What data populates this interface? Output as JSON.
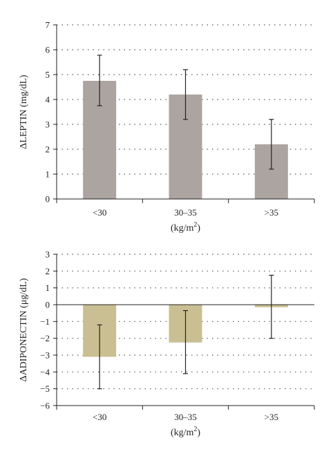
{
  "chart_data": [
    {
      "type": "bar",
      "categories": [
        "<30",
        "30–35",
        ">35"
      ],
      "values": [
        4.75,
        4.2,
        2.2
      ],
      "error_low": [
        3.75,
        3.2,
        1.2
      ],
      "error_high": [
        5.78,
        5.2,
        3.2
      ],
      "ylabel": "ΔLEPTIN (mg/dL)",
      "xlabel_main": "(kg/m",
      "xlabel_sup": "2",
      "xlabel_end": ")",
      "ylim": [
        0,
        7
      ],
      "yticks": [
        "0",
        "1",
        "2",
        "3",
        "4",
        "5",
        "6",
        "7"
      ],
      "grid": true,
      "bar_color": "#aca4a0"
    },
    {
      "type": "bar",
      "categories": [
        "<30",
        "30–35",
        ">35"
      ],
      "values": [
        -3.1,
        -2.25,
        -0.15
      ],
      "error_low": [
        -5.0,
        -4.1,
        -2.0
      ],
      "error_high": [
        -1.2,
        -0.35,
        1.75
      ],
      "ylabel": "ΔADIPONECTIN (μg/dL)",
      "xlabel_main": "(kg/m",
      "xlabel_sup": "2",
      "xlabel_end": ")",
      "ylim": [
        -6,
        3
      ],
      "yticks": [
        "−6",
        "−5",
        "−4",
        "−3",
        "−2",
        "−1",
        "0",
        "1",
        "2",
        "3"
      ],
      "grid": true,
      "bar_color": "#c9bf92"
    }
  ]
}
